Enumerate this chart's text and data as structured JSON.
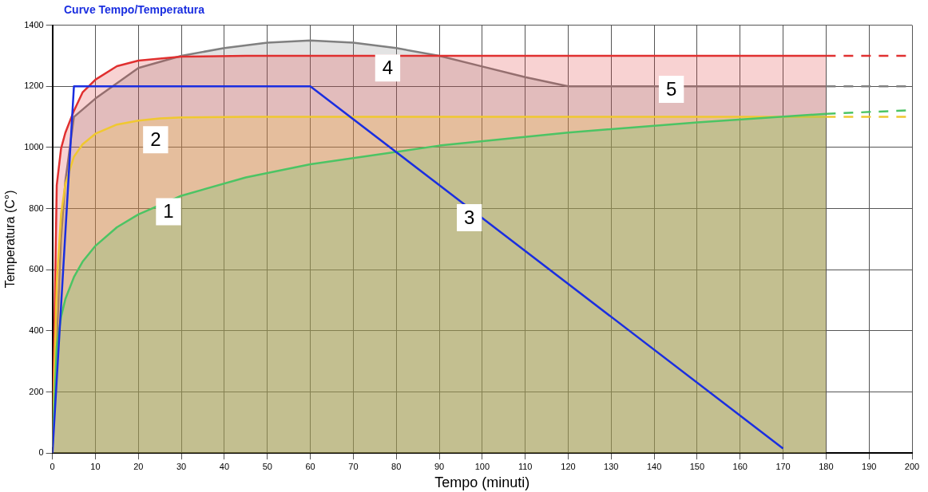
{
  "chart_data": {
    "type": "line",
    "title": "Curve Tempo/Temperatura",
    "xlabel": "Tempo (minuti)",
    "ylabel": "Temperatura (C°)",
    "xlim": [
      0,
      200
    ],
    "xticks": [
      0,
      10,
      20,
      30,
      40,
      50,
      60,
      70,
      80,
      90,
      100,
      110,
      120,
      130,
      140,
      150,
      160,
      170,
      180,
      190,
      200
    ],
    "ylim": [
      0,
      1400
    ],
    "yticks": [
      0,
      200,
      400,
      600,
      800,
      1000,
      1200,
      1400
    ],
    "grid": true,
    "legend": false,
    "marker": "none",
    "series": [
      {
        "type": "area",
        "color": "#4cc464",
        "x": [
          0,
          1,
          2,
          3,
          5,
          7,
          10,
          15,
          20,
          30,
          45,
          60,
          90,
          120,
          150,
          180
        ],
        "values": [
          20,
          349,
          445,
          504,
          576,
          626,
          678,
          739,
          781,
          842,
          902,
          945,
          1006,
          1049,
          1082,
          1110
        ]
      },
      {
        "type": "area",
        "color": "#f0c830",
        "x": [
          0,
          1,
          2,
          3,
          5,
          7,
          10,
          15,
          20,
          25,
          30,
          45,
          60,
          120,
          180
        ],
        "values": [
          0,
          560,
          780,
          880,
          970,
          1010,
          1045,
          1075,
          1088,
          1095,
          1098,
          1100,
          1100,
          1100,
          1100
        ]
      },
      {
        "type": "area",
        "color": "#e03030",
        "x": [
          0,
          1,
          2,
          3,
          5,
          7,
          10,
          15,
          20,
          30,
          45,
          60,
          120,
          180
        ],
        "values": [
          20,
          876,
          996,
          1048,
          1120,
          1180,
          1222,
          1266,
          1284,
          1297,
          1300,
          1300,
          1300,
          1300
        ]
      },
      {
        "type": "area",
        "color": "#808080",
        "x": [
          0,
          2,
          3,
          5,
          10,
          20,
          30,
          40,
          50,
          60,
          70,
          80,
          90,
          100,
          110,
          120,
          150,
          180
        ],
        "values": [
          20,
          700,
          890,
          1100,
          1160,
          1260,
          1300,
          1325,
          1343,
          1350,
          1343,
          1325,
          1300,
          1265,
          1230,
          1200,
          1200,
          1200
        ]
      },
      {
        "type": "line",
        "color": "#1a2ee0",
        "x": [
          0,
          5,
          60,
          170
        ],
        "values": [
          0,
          1200,
          1200,
          15
        ]
      },
      {
        "type": "line",
        "color": "#e03030",
        "line_style": "dashed",
        "x": [
          180,
          200
        ],
        "values": [
          1300,
          1300
        ]
      },
      {
        "type": "line",
        "color": "#808080",
        "line_style": "dashed",
        "x": [
          180,
          200
        ],
        "values": [
          1200,
          1200
        ]
      },
      {
        "type": "line",
        "color": "#4cc464",
        "line_style": "dashed",
        "x": [
          180,
          200
        ],
        "values": [
          1110,
          1122
        ]
      },
      {
        "type": "line",
        "color": "#f0c830",
        "line_style": "dashed",
        "x": [
          180,
          200
        ],
        "values": [
          1100,
          1100
        ]
      }
    ],
    "annotations": [
      {
        "text": "1",
        "x": 27,
        "y": 790
      },
      {
        "text": "2",
        "x": 24,
        "y": 1025
      },
      {
        "text": "3",
        "x": 97,
        "y": 770
      },
      {
        "text": "4",
        "x": 78,
        "y": 1260
      },
      {
        "text": "5",
        "x": 144,
        "y": 1190
      }
    ]
  }
}
